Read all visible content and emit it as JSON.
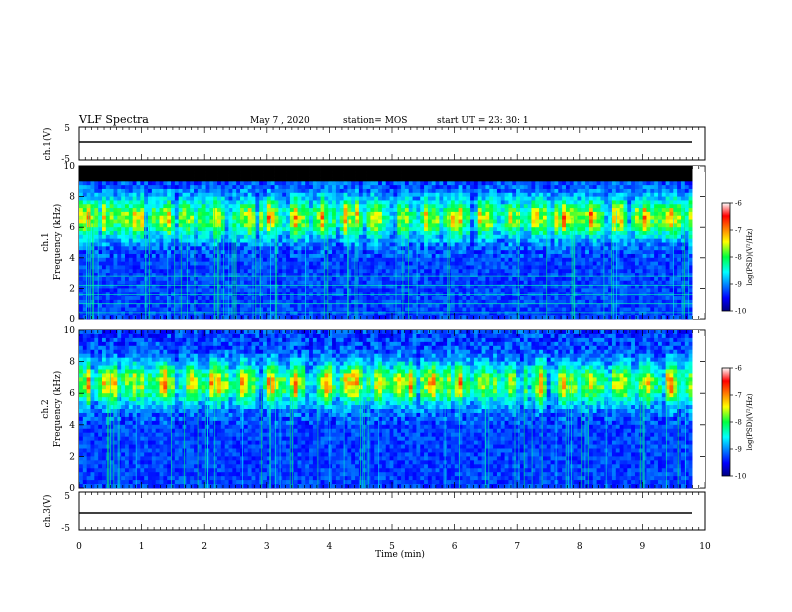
{
  "header": {
    "title": "VLF Spectra",
    "date": "May 7  , 2020",
    "station": "station= MOS",
    "start": "start  UT  =   23: 30: 1"
  },
  "chart_data": [
    {
      "type": "line",
      "name": "ch1-voltage",
      "ylabel": "ch.1(V)",
      "ylim": [
        -5,
        5
      ],
      "yticks": [
        "5",
        "-5"
      ],
      "x": [
        0,
        9.8
      ],
      "values": [
        -0.3,
        -0.3
      ],
      "xlim": [
        0,
        10
      ]
    },
    {
      "type": "heatmap",
      "name": "ch1-spectrogram",
      "ylabel_line1": "ch.1",
      "ylabel_line2": "Frequency (kHz)",
      "ylim": [
        0,
        10
      ],
      "yticks": [
        "0",
        "2",
        "4",
        "6",
        "8",
        "10"
      ],
      "xlim": [
        0,
        10
      ],
      "data_xmax": 9.8,
      "colorbar": {
        "label": "log(PSD)(V²/Hz)",
        "ticks": [
          "-6",
          "-7",
          "-8",
          "-9",
          "-10"
        ],
        "range": [
          -10,
          -6
        ]
      }
    },
    {
      "type": "heatmap",
      "name": "ch2-spectrogram",
      "ylabel_line1": "ch.2",
      "ylabel_line2": "Frequency (kHz)",
      "ylim": [
        0,
        10
      ],
      "yticks": [
        "0",
        "2",
        "4",
        "6",
        "8",
        "10"
      ],
      "xlim": [
        0,
        10
      ],
      "data_xmax": 9.8,
      "colorbar": {
        "label": "log(PSD)(V²/Hz)",
        "ticks": [
          "-6",
          "-7",
          "-8",
          "-9",
          "-10"
        ],
        "range": [
          -10,
          -6
        ]
      }
    },
    {
      "type": "line",
      "name": "ch3-voltage",
      "ylabel": "ch.3(V)",
      "ylim": [
        -5,
        5
      ],
      "yticks": [
        "5",
        "-5"
      ],
      "x": [
        0,
        9.8
      ],
      "values": [
        -1.5,
        -1.5
      ],
      "xlim": [
        0,
        10
      ],
      "xlabel": "Time  (min)",
      "xticks": [
        "0",
        "1",
        "2",
        "3",
        "4",
        "5",
        "6",
        "7",
        "8",
        "9",
        "10"
      ]
    }
  ]
}
